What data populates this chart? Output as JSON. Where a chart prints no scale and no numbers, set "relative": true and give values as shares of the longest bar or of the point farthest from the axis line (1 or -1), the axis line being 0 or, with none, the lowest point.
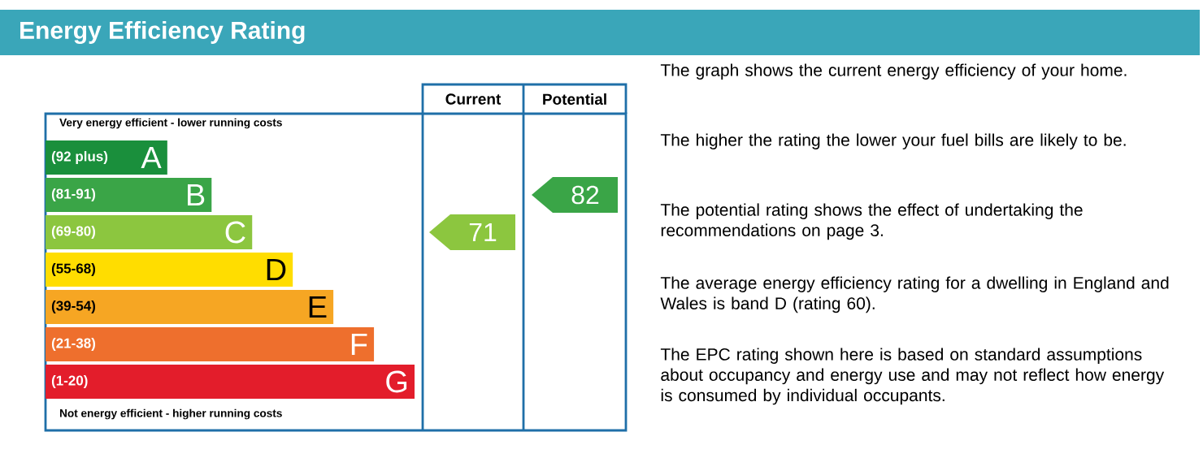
{
  "chart_data": {
    "type": "bar",
    "orientation": "horizontal",
    "relative": true,
    "title": "Energy Efficiency Rating",
    "categories": [
      "A",
      "B",
      "C",
      "D",
      "E",
      "F",
      "G"
    ],
    "values": [
      0.33,
      0.45,
      0.56,
      0.67,
      0.78,
      0.89,
      1.0
    ],
    "colors": [
      "#1a8f3c",
      "#3aa547",
      "#8cc63f",
      "#ffdd00",
      "#f6a623",
      "#ee6f2d",
      "#e31d2b"
    ],
    "annotations": [
      "Very energy efficient - lower running costs",
      "Not energy efficient - higher running costs",
      "Current",
      "Potential",
      "The graph shows the current energy efficiency of your home.",
      "The higher the rating the lower your fuel bills are likely to be.",
      "The potential rating shows the effect of undertaking the recommendations on page 3.",
      "The average energy efficiency rating for a dwelling in England and Wales is band D (rating 60).",
      "The EPC rating shown here is based on standard assumptions about occupancy and energy use and may not reflect how energy is consumed by individual occupants.",
      "(92 plus)",
      "(81-91)",
      "(69-80)",
      "(55-68)",
      "(39-54)",
      "(21-38)",
      "(1-20)",
      "71",
      "82"
    ]
  }
}
